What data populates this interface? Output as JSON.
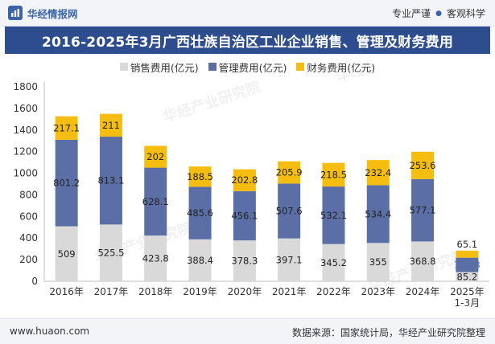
{
  "header": {
    "brand_name": "华经情报网",
    "tagline_left": "专业严谨",
    "tagline_right": "客观科学"
  },
  "chart_data": {
    "type": "bar",
    "stacked": true,
    "title": "2016-2025年3月广西壮族自治区工业企业销售、管理及财务费用",
    "categories": [
      "2016年",
      "2017年",
      "2018年",
      "2019年",
      "2020年",
      "2021年",
      "2022年",
      "2023年",
      "2024年",
      "2025年1-3月"
    ],
    "category_lines": [
      [
        "2016年"
      ],
      [
        "2017年"
      ],
      [
        "2018年"
      ],
      [
        "2019年"
      ],
      [
        "2020年"
      ],
      [
        "2021年"
      ],
      [
        "2022年"
      ],
      [
        "2023年"
      ],
      [
        "2024年"
      ],
      [
        "2025年",
        "1-3月"
      ]
    ],
    "series": [
      {
        "name": "销售费用(亿元)",
        "color": "#d9d9d9",
        "values": [
          509,
          525.5,
          423.8,
          388.4,
          378.3,
          397.1,
          345.2,
          355,
          368.8,
          85.2
        ]
      },
      {
        "name": "管理费用(亿元)",
        "color": "#5b6fa6",
        "values": [
          801.2,
          813.1,
          628.1,
          485.6,
          456.1,
          507.6,
          532.1,
          534.4,
          577.1,
          133.3
        ]
      },
      {
        "name": "财务费用(亿元)",
        "color": "#f5bd0f",
        "values": [
          217.1,
          211,
          202,
          188.5,
          202.8,
          205.9,
          218.5,
          232.4,
          253.6,
          65.1
        ]
      }
    ],
    "ylim": [
      0,
      1800
    ],
    "yticks": [
      0,
      200,
      400,
      600,
      800,
      1000,
      1200,
      1400,
      1600,
      1800
    ],
    "legend_position": "top-center",
    "grid": false
  },
  "watermark": {
    "text": "华经产业研究院",
    "url": "www.huaon.com"
  },
  "footer": {
    "website": "www.huaon.com",
    "source": "数据来源：国家统计局，华经产业研究院整理"
  }
}
